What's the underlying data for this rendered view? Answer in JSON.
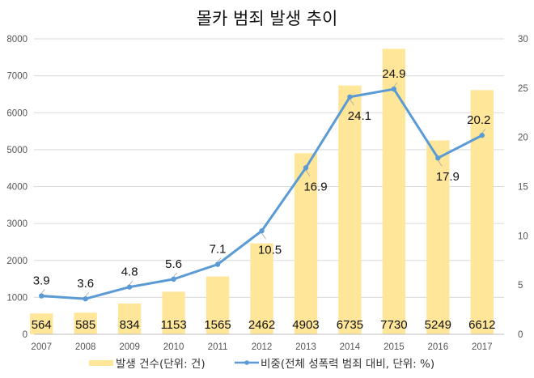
{
  "chart_data": {
    "type": "bar+line",
    "title": "몰카 범죄 발생 추이",
    "categories": [
      "2007",
      "2008",
      "2009",
      "2010",
      "2011",
      "2012",
      "2013",
      "2014",
      "2015",
      "2016",
      "2017"
    ],
    "series": [
      {
        "name": "발생 건수(단위: 건)",
        "type": "bar",
        "axis": "left",
        "color": "#FFE699",
        "values": [
          564,
          585,
          834,
          1153,
          1565,
          2462,
          4903,
          6735,
          7730,
          5249,
          6612
        ],
        "labels": [
          "564",
          "585",
          "834",
          "1153",
          "1565",
          "2462",
          "4903",
          "6735",
          "7730",
          "5249",
          "6612"
        ]
      },
      {
        "name": "비중(전체 성폭력 범죄 대비, 단위: %)",
        "type": "line",
        "axis": "right",
        "color": "#5B9BD5",
        "values": [
          3.9,
          3.6,
          4.8,
          5.6,
          7.1,
          10.5,
          16.9,
          24.1,
          24.9,
          17.9,
          20.2
        ],
        "labels": [
          "3.9",
          "3.6",
          "4.8",
          "5.6",
          "7.1",
          "10.5",
          "16.9",
          "24.1",
          "24.9",
          "17.9",
          "20.2"
        ]
      }
    ],
    "y_left": {
      "lim": [
        0,
        8000
      ],
      "ticks": [
        "0",
        "1000",
        "2000",
        "3000",
        "4000",
        "5000",
        "6000",
        "7000",
        "8000"
      ]
    },
    "y_right": {
      "lim": [
        0,
        30
      ],
      "ticks": [
        "0",
        "5",
        "10",
        "15",
        "20",
        "25",
        "30"
      ]
    },
    "xlabel": "",
    "grid": true,
    "legend": "bottom-center"
  }
}
